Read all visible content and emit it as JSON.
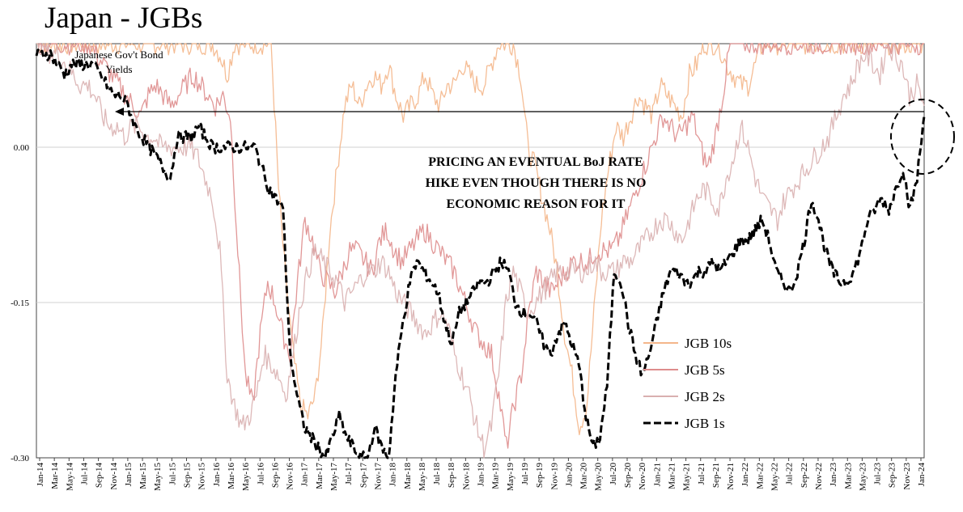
{
  "title": "Japan - JGBs",
  "chart_data": {
    "type": "line",
    "title": "Japan - JGBs",
    "subtitle": "Japanese Gov't Bond Yields",
    "annotation": "PRICING AN EVENTUAL BoJ RATE HIKE EVEN THOUGH THERE IS NO ECONOMIC REASON FOR IT",
    "annotation_lines": [
      "PRICING AN EVENTUAL BoJ RATE",
      "HIKE EVEN THOUGH THERE IS NO",
      "ECONOMIC REASON FOR IT"
    ],
    "ylim": [
      -0.3,
      0.1
    ],
    "yticks": [
      0.0,
      -0.15,
      -0.3
    ],
    "ytick_labels": [
      "0.00",
      "-0.15",
      "-0.30"
    ],
    "grid": "horizontal",
    "legend_position": "bottom-right",
    "x_labels": [
      "Jan-14",
      "Mar-14",
      "May-14",
      "Jul-14",
      "Sep-14",
      "Nov-14",
      "Jan-15",
      "Mar-15",
      "May-15",
      "Jul-15",
      "Sep-15",
      "Nov-15",
      "Jan-16",
      "Mar-16",
      "May-16",
      "Jul-16",
      "Sep-16",
      "Nov-16",
      "Jan-17",
      "Mar-17",
      "May-17",
      "Jul-17",
      "Sep-17",
      "Nov-17",
      "Jan-18",
      "Mar-18",
      "May-18",
      "Jul-18",
      "Sep-18",
      "Nov-18",
      "Jan-19",
      "Mar-19",
      "May-19",
      "Jul-19",
      "Sep-19",
      "Nov-19",
      "Jan-20",
      "Mar-20",
      "May-20",
      "Jul-20",
      "Sep-20",
      "Nov-20",
      "Jan-21",
      "Mar-21",
      "May-21",
      "Jul-21",
      "Sep-21",
      "Nov-21",
      "Jan-22",
      "Mar-22",
      "May-22",
      "Jul-22",
      "Sep-22",
      "Nov-22",
      "Jan-23",
      "Mar-23",
      "May-23",
      "Jul-23",
      "Sep-23",
      "Nov-23",
      "Jan-24"
    ],
    "series": [
      {
        "name": "JGB 10s",
        "color": "#f4b68a",
        "style": "solid",
        "values": [
          0.1,
          0.1,
          0.1,
          0.1,
          0.1,
          0.1,
          0.1,
          0.1,
          0.1,
          0.1,
          0.1,
          0.1,
          0.1,
          0.1,
          0.1,
          0.1,
          0.1,
          0.1,
          0.1,
          0.1,
          0.1,
          0.1,
          0.1,
          0.1,
          0.1,
          0.09,
          0.07,
          0.1,
          0.1,
          0.1,
          0.1,
          0.1,
          0.1,
          -0.04,
          -0.13,
          -0.2,
          -0.25,
          -0.26,
          -0.24,
          -0.18,
          -0.08,
          -0.02,
          0.04,
          0.06,
          0.04,
          0.06,
          0.07,
          0.06,
          0.08,
          0.05,
          0.03,
          0.04,
          0.05,
          0.07,
          0.05,
          0.04,
          0.06,
          0.06,
          0.08,
          0.07,
          0.06,
          0.06,
          0.08,
          0.1,
          0.1,
          0.1,
          0.07,
          0.0,
          -0.02,
          -0.05,
          -0.08,
          -0.12,
          -0.18,
          -0.22,
          -0.27,
          -0.25,
          -0.16,
          -0.07,
          -0.02,
          0.02,
          0.01,
          0.03,
          0.05,
          0.04,
          0.03,
          0.06,
          0.05,
          0.04,
          0.03,
          0.07,
          0.08,
          0.1,
          0.1,
          0.1,
          0.08,
          0.07,
          0.06,
          0.06,
          0.08,
          0.1,
          0.1,
          0.1,
          0.1,
          0.1,
          0.1,
          0.1,
          0.1,
          0.1,
          0.1,
          0.1,
          0.1,
          0.1,
          0.1,
          0.1,
          0.1,
          0.1,
          0.1,
          0.1,
          0.1,
          0.1,
          0.1,
          0.1
        ]
      },
      {
        "name": "JGB 5s",
        "color": "#de8c8c",
        "style": "solid",
        "values": [
          0.1,
          0.1,
          0.1,
          0.1,
          0.1,
          0.1,
          0.1,
          0.1,
          0.09,
          0.08,
          0.07,
          0.06,
          0.05,
          0.04,
          0.03,
          0.05,
          0.06,
          0.05,
          0.04,
          0.05,
          0.06,
          0.07,
          0.06,
          0.05,
          0.04,
          0.05,
          0.03,
          -0.1,
          -0.22,
          -0.25,
          -0.18,
          -0.13,
          -0.15,
          -0.18,
          -0.2,
          -0.13,
          -0.07,
          -0.09,
          -0.12,
          -0.13,
          -0.14,
          -0.12,
          -0.1,
          -0.1,
          -0.11,
          -0.12,
          -0.09,
          -0.08,
          -0.1,
          -0.11,
          -0.1,
          -0.09,
          -0.08,
          -0.09,
          -0.1,
          -0.11,
          -0.12,
          -0.14,
          -0.16,
          -0.18,
          -0.19,
          -0.2,
          -0.24,
          -0.29,
          -0.25,
          -0.22,
          -0.16,
          -0.12,
          -0.13,
          -0.14,
          -0.13,
          -0.12,
          -0.11,
          -0.11,
          -0.11,
          -0.1,
          -0.1,
          -0.1,
          -0.09,
          -0.07,
          -0.05,
          -0.03,
          -0.01,
          0.01,
          0.03,
          0.02,
          0.01,
          0.02,
          0.03,
          0.0,
          -0.02,
          0.01,
          0.05,
          0.1,
          0.1,
          0.1,
          0.1,
          0.1,
          0.1,
          0.1,
          0.1,
          0.1,
          0.1,
          0.1,
          0.1,
          0.1,
          0.1,
          0.1,
          0.1,
          0.1,
          0.1,
          0.1,
          0.1,
          0.1,
          0.1,
          0.1,
          0.1,
          0.1,
          0.1,
          0.1
        ]
      },
      {
        "name": "JGB 2s",
        "color": "#d9b0b0",
        "style": "solid",
        "values": [
          0.1,
          0.1,
          0.09,
          0.09,
          0.08,
          0.07,
          0.06,
          0.06,
          0.05,
          0.03,
          0.02,
          0.02,
          0.01,
          0.02,
          0.02,
          0.01,
          0.01,
          0.0,
          0.0,
          0.0,
          0.0,
          0.0,
          -0.01,
          -0.03,
          -0.05,
          -0.1,
          -0.22,
          -0.25,
          -0.27,
          -0.26,
          -0.24,
          -0.2,
          -0.21,
          -0.22,
          -0.24,
          -0.2,
          -0.15,
          -0.12,
          -0.1,
          -0.11,
          -0.12,
          -0.13,
          -0.15,
          -0.14,
          -0.13,
          -0.12,
          -0.12,
          -0.11,
          -0.12,
          -0.14,
          -0.15,
          -0.16,
          -0.17,
          -0.18,
          -0.17,
          -0.16,
          -0.17,
          -0.2,
          -0.22,
          -0.24,
          -0.27,
          -0.29,
          -0.27,
          -0.22,
          -0.15,
          -0.12,
          -0.14,
          -0.16,
          -0.15,
          -0.14,
          -0.13,
          -0.12,
          -0.12,
          -0.12,
          -0.12,
          -0.12,
          -0.11,
          -0.12,
          -0.12,
          -0.12,
          -0.11,
          -0.11,
          -0.1,
          -0.09,
          -0.08,
          -0.07,
          -0.07,
          -0.08,
          -0.09,
          -0.07,
          -0.05,
          -0.04,
          -0.05,
          -0.06,
          -0.03,
          -0.01,
          0.02,
          0.0,
          -0.03,
          -0.05,
          -0.06,
          -0.07,
          -0.05,
          -0.04,
          -0.03,
          -0.02,
          -0.01,
          0.0,
          0.01,
          0.03,
          0.05,
          0.06,
          0.08,
          0.09,
          0.08,
          0.07,
          0.1,
          0.09,
          0.08,
          0.05,
          0.06,
          0.04
        ]
      },
      {
        "name": "JGB 1s",
        "color": "#000000",
        "style": "dashed",
        "values": [
          0.09,
          0.09,
          0.09,
          0.08,
          0.07,
          0.08,
          0.08,
          0.08,
          0.08,
          0.07,
          0.06,
          0.05,
          0.05,
          0.04,
          0.02,
          0.01,
          0.0,
          -0.01,
          -0.02,
          -0.03,
          0.01,
          0.01,
          0.01,
          0.02,
          0.01,
          0.0,
          0.0,
          0.0,
          0.0,
          0.0,
          0.0,
          0.0,
          -0.02,
          -0.04,
          -0.05,
          -0.06,
          -0.2,
          -0.24,
          -0.27,
          -0.28,
          -0.29,
          -0.3,
          -0.28,
          -0.26,
          -0.28,
          -0.29,
          -0.3,
          -0.3,
          -0.27,
          -0.29,
          -0.3,
          -0.22,
          -0.17,
          -0.13,
          -0.11,
          -0.12,
          -0.13,
          -0.14,
          -0.17,
          -0.19,
          -0.16,
          -0.15,
          -0.14,
          -0.13,
          -0.13,
          -0.12,
          -0.11,
          -0.12,
          -0.15,
          -0.16,
          -0.16,
          -0.17,
          -0.19,
          -0.2,
          -0.18,
          -0.17,
          -0.19,
          -0.21,
          -0.26,
          -0.29,
          -0.28,
          -0.23,
          -0.12,
          -0.13,
          -0.17,
          -0.2,
          -0.22,
          -0.2,
          -0.17,
          -0.14,
          -0.12,
          -0.12,
          -0.13,
          -0.13,
          -0.12,
          -0.12,
          -0.11,
          -0.12,
          -0.11,
          -0.1,
          -0.09,
          -0.09,
          -0.08,
          -0.07,
          -0.09,
          -0.12,
          -0.13,
          -0.14,
          -0.12,
          -0.09,
          -0.05,
          -0.07,
          -0.1,
          -0.12,
          -0.13,
          -0.13,
          -0.12,
          -0.1,
          -0.07,
          -0.06,
          -0.05,
          -0.06,
          -0.04,
          -0.02,
          -0.06,
          -0.03,
          0.03
        ]
      }
    ]
  }
}
